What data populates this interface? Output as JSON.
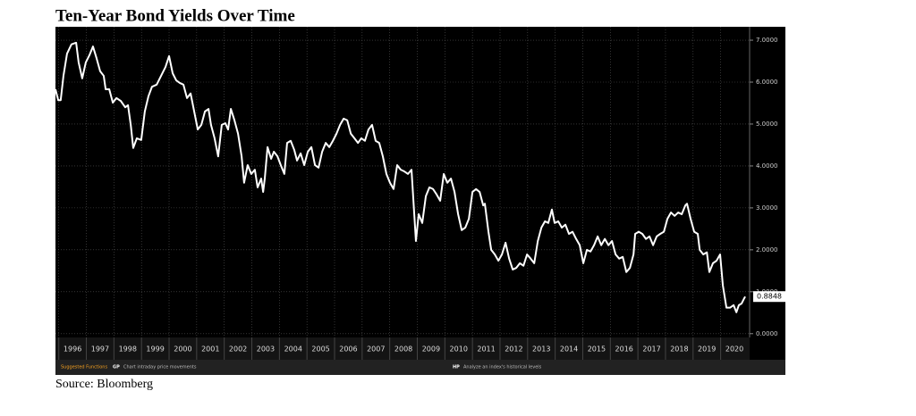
{
  "chart_data": {
    "type": "line",
    "title": "Ten-Year Bond Yields Over Time",
    "source": "Source: Bloomberg",
    "color": "#ffffff",
    "grid": true,
    "xlim": [
      1995.88,
      2021.05
    ],
    "xticks": [
      1996,
      1997,
      1998,
      1999,
      2000,
      2001,
      2002,
      2003,
      2004,
      2005,
      2006,
      2007,
      2008,
      2009,
      2010,
      2011,
      2012,
      2013,
      2014,
      2015,
      2016,
      2017,
      2018,
      2019,
      2020
    ],
    "ylim": [
      -0.09,
      7.32
    ],
    "yticks": [
      {
        "value": 0,
        "label": "0.0000"
      },
      {
        "value": 1,
        "label": "1.0000"
      },
      {
        "value": 2,
        "label": "2.0000"
      },
      {
        "value": 3,
        "label": "3.0000"
      },
      {
        "value": 4,
        "label": "4.0000"
      },
      {
        "value": 5,
        "label": "5.0000"
      },
      {
        "value": 6,
        "label": "6.0000"
      },
      {
        "value": 7,
        "label": "7.0000"
      }
    ],
    "x": [
      1995.88,
      1995.98,
      1996.07,
      1996.17,
      1996.3,
      1996.46,
      1996.63,
      1996.72,
      1996.85,
      1996.98,
      1997.11,
      1997.24,
      1997.37,
      1997.5,
      1997.63,
      1997.7,
      1997.83,
      1997.96,
      1998.09,
      1998.25,
      1998.41,
      1998.51,
      1998.61,
      1998.7,
      1998.83,
      1998.99,
      1999.12,
      1999.25,
      1999.38,
      1999.55,
      1999.71,
      1999.87,
      2000.0,
      2000.13,
      2000.26,
      2000.39,
      2000.52,
      2000.65,
      2000.78,
      2000.91,
      2001.04,
      2001.17,
      2001.3,
      2001.43,
      2001.52,
      2001.65,
      2001.78,
      2001.91,
      2002.04,
      2002.14,
      2002.24,
      2002.37,
      2002.5,
      2002.63,
      2002.72,
      2002.85,
      2002.98,
      2003.11,
      2003.21,
      2003.34,
      2003.41,
      2003.47,
      2003.57,
      2003.7,
      2003.8,
      2003.93,
      2004.05,
      2004.18,
      2004.28,
      2004.41,
      2004.54,
      2004.64,
      2004.77,
      2004.9,
      2005.03,
      2005.16,
      2005.29,
      2005.42,
      2005.55,
      2005.68,
      2005.81,
      2005.94,
      2006.07,
      2006.2,
      2006.33,
      2006.46,
      2006.59,
      2006.72,
      2006.85,
      2006.97,
      2007.1,
      2007.23,
      2007.36,
      2007.49,
      2007.62,
      2007.75,
      2007.88,
      2008.01,
      2008.14,
      2008.27,
      2008.4,
      2008.53,
      2008.66,
      2008.79,
      2008.89,
      2008.95,
      2009.05,
      2009.18,
      2009.31,
      2009.44,
      2009.57,
      2009.7,
      2009.83,
      2009.96,
      2010.09,
      2010.22,
      2010.35,
      2010.48,
      2010.61,
      2010.74,
      2010.87,
      2011.0,
      2011.13,
      2011.26,
      2011.39,
      2011.45,
      2011.58,
      2011.68,
      2011.81,
      2011.94,
      2012.07,
      2012.2,
      2012.33,
      2012.46,
      2012.59,
      2012.72,
      2012.85,
      2012.98,
      2013.11,
      2013.24,
      2013.37,
      2013.5,
      2013.63,
      2013.75,
      2013.88,
      2013.98,
      2014.11,
      2014.24,
      2014.37,
      2014.5,
      2014.63,
      2014.76,
      2014.89,
      2015.02,
      2015.15,
      2015.28,
      2015.41,
      2015.54,
      2015.67,
      2015.8,
      2015.93,
      2016.06,
      2016.19,
      2016.32,
      2016.45,
      2016.58,
      2016.71,
      2016.84,
      2016.9,
      2017.03,
      2017.16,
      2017.29,
      2017.42,
      2017.55,
      2017.68,
      2017.81,
      2017.94,
      2018.07,
      2018.2,
      2018.33,
      2018.46,
      2018.59,
      2018.72,
      2018.78,
      2018.91,
      2019.04,
      2019.17,
      2019.24,
      2019.37,
      2019.5,
      2019.59,
      2019.72,
      2019.85,
      2019.98,
      2020.08,
      2020.21,
      2020.34,
      2020.47,
      2020.57,
      2020.66,
      2020.76,
      2020.86,
      2020.89
    ],
    "values": [
      5.83,
      5.57,
      5.57,
      6.15,
      6.68,
      6.9,
      6.94,
      6.47,
      6.09,
      6.47,
      6.64,
      6.85,
      6.57,
      6.26,
      6.15,
      5.83,
      5.83,
      5.51,
      5.62,
      5.55,
      5.4,
      5.45,
      4.98,
      4.43,
      4.66,
      4.62,
      5.3,
      5.66,
      5.89,
      5.94,
      6.15,
      6.36,
      6.62,
      6.21,
      6.04,
      5.98,
      5.94,
      5.62,
      5.73,
      5.3,
      4.87,
      4.98,
      5.3,
      5.36,
      4.98,
      4.66,
      4.23,
      4.98,
      5.02,
      4.87,
      5.36,
      5.09,
      4.77,
      4.23,
      3.6,
      4.02,
      3.81,
      3.91,
      3.49,
      3.7,
      3.38,
      3.7,
      4.45,
      4.17,
      4.34,
      4.23,
      4.02,
      3.81,
      4.55,
      4.6,
      4.38,
      4.13,
      4.3,
      4.02,
      4.34,
      4.45,
      4.02,
      3.96,
      4.34,
      4.55,
      4.45,
      4.6,
      4.77,
      4.98,
      5.13,
      5.09,
      4.77,
      4.66,
      4.55,
      4.66,
      4.6,
      4.87,
      4.98,
      4.6,
      4.55,
      4.23,
      3.81,
      3.6,
      3.45,
      4.02,
      3.91,
      3.87,
      3.81,
      3.91,
      2.85,
      2.21,
      2.85,
      2.64,
      3.28,
      3.49,
      3.45,
      3.32,
      3.17,
      3.81,
      3.6,
      3.7,
      3.38,
      2.85,
      2.47,
      2.53,
      2.74,
      3.38,
      3.45,
      3.38,
      3.06,
      3.1,
      2.43,
      2.0,
      1.89,
      1.74,
      1.89,
      2.17,
      1.79,
      1.53,
      1.57,
      1.68,
      1.62,
      1.89,
      1.79,
      1.68,
      2.21,
      2.53,
      2.68,
      2.64,
      2.96,
      2.64,
      2.68,
      2.53,
      2.6,
      2.38,
      2.43,
      2.26,
      2.11,
      1.68,
      2.0,
      1.96,
      2.11,
      2.32,
      2.11,
      2.26,
      2.11,
      2.21,
      1.89,
      1.79,
      1.83,
      1.47,
      1.57,
      1.89,
      2.38,
      2.43,
      2.38,
      2.26,
      2.32,
      2.11,
      2.32,
      2.38,
      2.43,
      2.74,
      2.89,
      2.81,
      2.89,
      2.85,
      3.06,
      3.1,
      2.74,
      2.43,
      2.38,
      2.0,
      1.89,
      1.94,
      1.47,
      1.68,
      1.74,
      1.89,
      1.15,
      0.62,
      0.62,
      0.68,
      0.51,
      0.68,
      0.72,
      0.85,
      0.8848
    ],
    "function_bar": [
      "Suggested Functions",
      "GP",
      "Chart intraday price movements",
      "HP",
      "Analyze an index's historical levels"
    ]
  }
}
